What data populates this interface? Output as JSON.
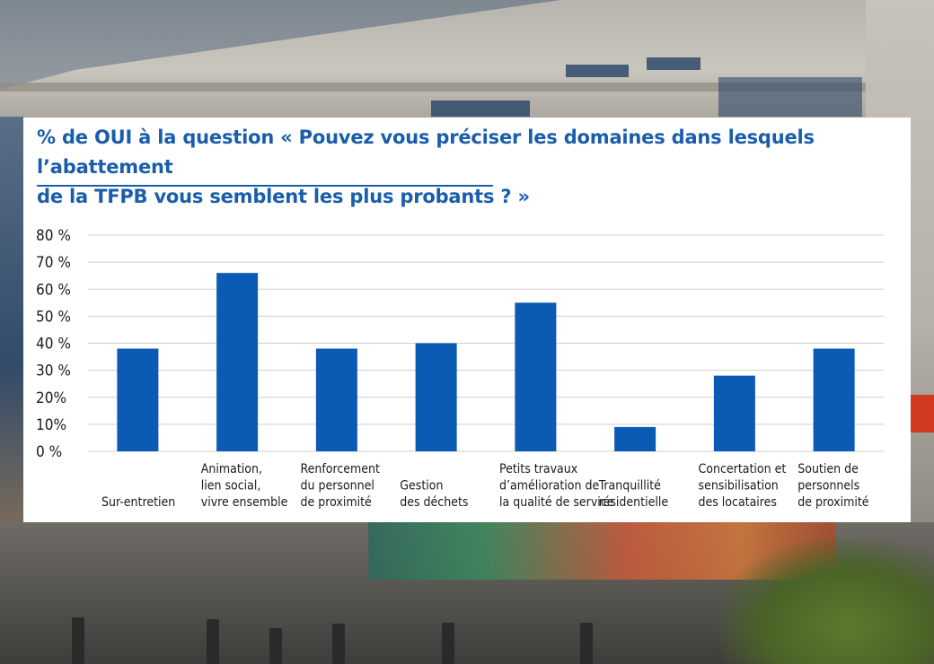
{
  "colors": {
    "bar": "#0b5bb5",
    "title": "#1a5dab",
    "grid": "#cfcfcf"
  },
  "chart_data": {
    "type": "bar",
    "title": "% de OUI à la question « Pouvez vous préciser les domaines dans lesquels l’abattement\nde la TFPB vous semblent les plus probants ? »",
    "xlabel": "",
    "ylabel": "",
    "grid": true,
    "ylim": [
      0,
      80
    ],
    "yticks": [
      {
        "value": 0,
        "label": "0 %"
      },
      {
        "value": 10,
        "label": "10%"
      },
      {
        "value": 20,
        "label": "20%"
      },
      {
        "value": 30,
        "label": "30 %"
      },
      {
        "value": 40,
        "label": "40 %"
      },
      {
        "value": 50,
        "label": "50 %"
      },
      {
        "value": 60,
        "label": "60 %"
      },
      {
        "value": 70,
        "label": "70 %"
      },
      {
        "value": 80,
        "label": "80 %"
      }
    ],
    "categories": [
      [
        "Sur-entretien"
      ],
      [
        "Animation,",
        "lien social,",
        "vivre ensemble"
      ],
      [
        "Renforcement",
        "du personnel",
        "de proximité"
      ],
      [
        "Gestion",
        "des déchets"
      ],
      [
        "Petits travaux",
        "d’amélioration de",
        "la qualité de service"
      ],
      [
        "Tranquillité",
        "résidentielle"
      ],
      [
        "Concertation et",
        "sensibilisation",
        "des locataires"
      ],
      [
        "Soutien de",
        "personnels",
        "de proximité"
      ]
    ],
    "values": [
      38,
      66,
      38,
      40,
      55,
      9,
      28,
      38
    ]
  }
}
